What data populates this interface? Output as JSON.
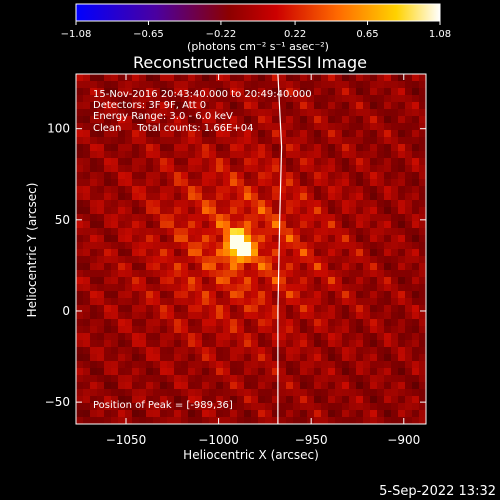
{
  "chart_data": {
    "type": "heatmap",
    "title": "Reconstructed RHESSI Image",
    "xlabel": "Heliocentric X (arcsec)",
    "ylabel": "Heliocentric Y (arcsec)",
    "xlim": [
      -1077,
      -888
    ],
    "ylim": [
      -62,
      130
    ],
    "xticks": [
      -1050,
      -1000,
      -950,
      -900
    ],
    "xtick_labels": [
      "−1050",
      "−1000",
      "−950",
      "−900"
    ],
    "yticks": [
      -50,
      0,
      50,
      100
    ],
    "ytick_labels": [
      "−50",
      "0",
      "50",
      "100"
    ],
    "colorbar": {
      "range": [
        -1.08,
        1.08
      ],
      "ticks": [
        -1.08,
        -0.65,
        -0.22,
        0.22,
        0.65,
        1.08
      ],
      "tick_labels": [
        "−1.08",
        "−0.65",
        "−0.22",
        "0.22",
        "0.65",
        "1.08"
      ],
      "unit_label": "(photons cm⁻² s⁻¹ asec⁻²)",
      "colors": [
        "#0000ff",
        "#4b00a0",
        "#8c0000",
        "#cc0000",
        "#ff6a00",
        "#ffd200",
        "#ffffff"
      ]
    },
    "source_peak": {
      "x": -989,
      "y": 36,
      "value": 1.08
    },
    "limb_curve": [
      [
        -968,
        130
      ],
      [
        -966,
        90
      ],
      [
        -967,
        50
      ],
      [
        -968,
        0
      ],
      [
        -968,
        -62
      ]
    ],
    "annotations": [
      "15-Nov-2016 20:43:40.000 to 20:49:40.000",
      "Detectors: 3F 9F, Att 0",
      "Energy Range: 3.0 - 6.0 keV",
      "Clean     Total counts: 1.66E+04"
    ],
    "peak_label": "Position of Peak = [-989,36]"
  },
  "footer": {
    "timestamp": "5-Sep-2022 13:32"
  }
}
